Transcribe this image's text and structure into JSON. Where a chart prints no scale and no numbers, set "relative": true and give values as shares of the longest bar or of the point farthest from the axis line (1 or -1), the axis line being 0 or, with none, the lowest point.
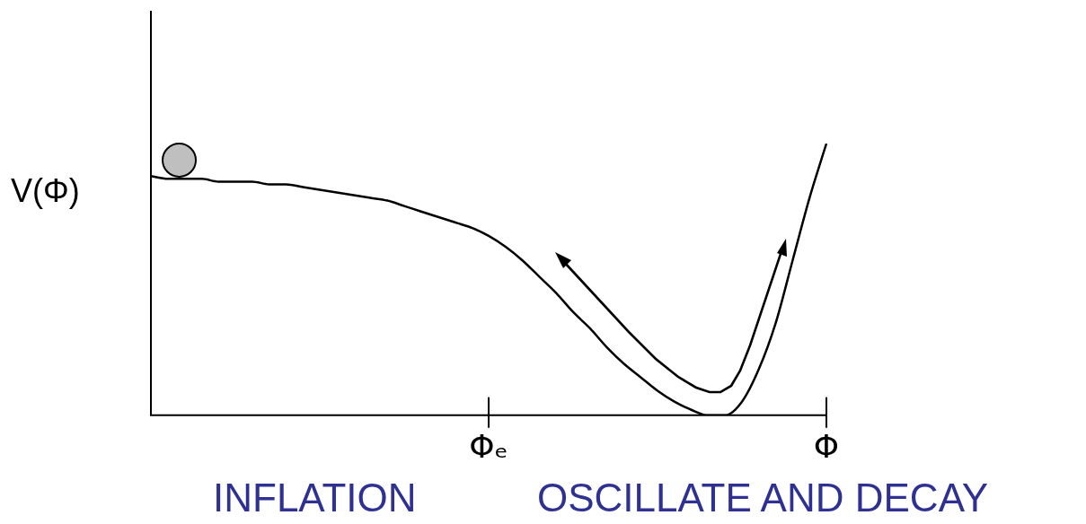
{
  "chart_data": {
    "type": "line",
    "relative": true,
    "ylabel": "V(Φ)",
    "categories": [
      null,
      null,
      null,
      null,
      null,
      null,
      null,
      null,
      null,
      null,
      null,
      null,
      null,
      null,
      null,
      null,
      null,
      null,
      null,
      null,
      "Φₑ",
      null,
      null,
      null,
      null,
      null,
      null,
      null,
      null,
      null,
      null,
      null,
      null,
      null,
      null,
      null,
      null,
      null,
      null,
      null,
      "Φ"
    ],
    "color": "#000000",
    "values": [
      0.88,
      0.87,
      0.87,
      0.87,
      0.86,
      0.86,
      0.86,
      0.85,
      0.85,
      0.84,
      0.83,
      0.82,
      0.81,
      0.8,
      0.79,
      0.77,
      0.75,
      0.73,
      0.71,
      0.69,
      0.66,
      0.62,
      0.57,
      0.51,
      0.45,
      0.38,
      0.32,
      0.25,
      0.19,
      0.14,
      0.09,
      0.05,
      0.02,
      0,
      0,
      0.05,
      0.17,
      0.34,
      0.57,
      0.8,
      1
    ],
    "annotations": [
      "INFLATION",
      "OSCILLATE AND DECAY"
    ]
  }
}
